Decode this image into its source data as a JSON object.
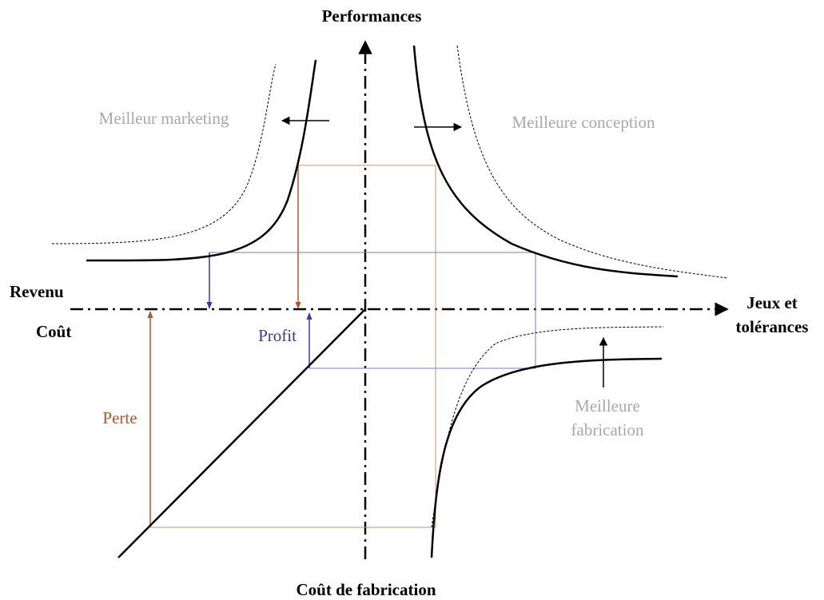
{
  "axes": {
    "vertical_top": "Performances",
    "vertical_bottom": "Coût de fabrication",
    "horizontal_upper": "Revenu",
    "horizontal_lower": "Coût",
    "horizontal_right": [
      "Jeux et",
      "tolérances"
    ]
  },
  "annotations": {
    "marketing": "Meilleur marketing",
    "conception": "Meilleure conception",
    "fabrication": [
      "Meilleure",
      "fabrication"
    ],
    "profit": "Profit",
    "loss": "Perte"
  }
}
